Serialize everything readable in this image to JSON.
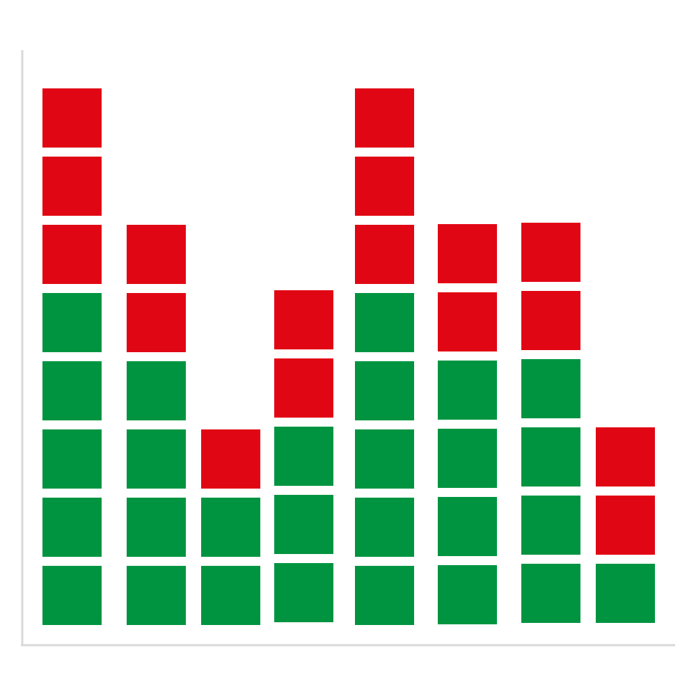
{
  "chart_data": {
    "type": "bar",
    "stacked": true,
    "unit_blocks": true,
    "categories": [
      "",
      "",
      "",
      "",
      "",
      "",
      "",
      ""
    ],
    "series": [
      {
        "values": [
          5,
          4,
          2,
          3,
          5,
          4,
          4,
          1
        ]
      },
      {
        "values": [
          3,
          2,
          1,
          2,
          3,
          2,
          2,
          2
        ]
      }
    ],
    "ylim": [
      0,
      8
    ],
    "grid": false,
    "legend": "none",
    "colors": {
      "lower_series": "#009440",
      "upper_series": "#e10614",
      "axis": "#d9d9d9",
      "background": "#ffffff"
    }
  }
}
